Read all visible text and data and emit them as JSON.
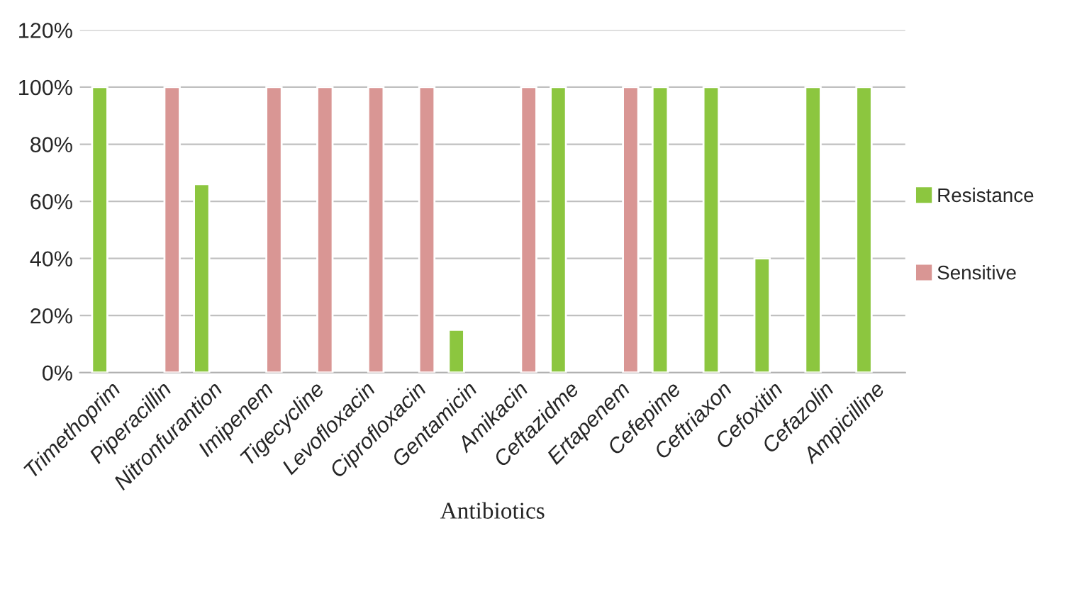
{
  "chart_data": {
    "type": "bar",
    "xlabel": "Antibiotics",
    "categories": [
      "Trimethoprim",
      "Piperacillin",
      "Nitronfurantion",
      "Imipenem",
      "Tigecycline",
      "Levofloxacin",
      "Ciprofloxacin",
      "Gentamicin",
      "Amikacin",
      "Ceftazidme",
      "Ertapenem",
      "Cefepime",
      "Ceftriaxon",
      "Cefoxitin",
      "Cefazolin",
      "Ampicilline"
    ],
    "series": [
      {
        "name": "Resistance",
        "color": "#8cc63f",
        "values": [
          100,
          null,
          66,
          null,
          null,
          null,
          null,
          15,
          null,
          100,
          null,
          100,
          100,
          40,
          100,
          100
        ]
      },
      {
        "name": "Sensitive",
        "color": "#d99694",
        "values": [
          null,
          100,
          null,
          100,
          100,
          100,
          100,
          null,
          100,
          null,
          100,
          null,
          null,
          null,
          null,
          null
        ]
      }
    ],
    "ylim": [
      0,
      120
    ],
    "yticks": [
      {
        "value": 0,
        "label": "0%"
      },
      {
        "value": 20,
        "label": "20%"
      },
      {
        "value": 40,
        "label": "40%"
      },
      {
        "value": 60,
        "label": "60%"
      },
      {
        "value": 80,
        "label": "80%"
      },
      {
        "value": 100,
        "label": "100%"
      },
      {
        "value": 120,
        "label": "120%"
      }
    ],
    "grid": "y",
    "legend": "right"
  }
}
